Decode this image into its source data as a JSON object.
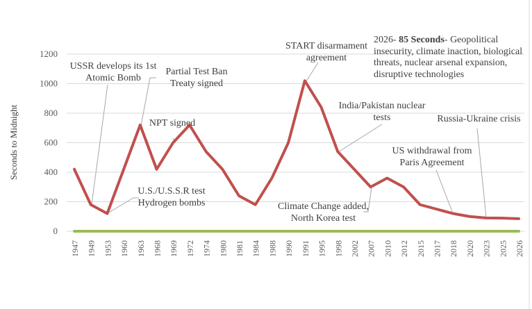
{
  "chart_data": {
    "type": "line",
    "ylabel": "Seconds to Midnight",
    "xlabel": "",
    "ylim": [
      0,
      1200
    ],
    "yticks": [
      0,
      200,
      400,
      600,
      800,
      1000,
      1200
    ],
    "grid": true,
    "categories": [
      "1947",
      "1949",
      "1953",
      "1960",
      "1963",
      "1968",
      "1969",
      "1972",
      "1974",
      "1980",
      "1981",
      "1984",
      "1988",
      "1990",
      "1991",
      "1995",
      "1998",
      "2002",
      "2007",
      "2010",
      "2012",
      "2015",
      "2017",
      "2018",
      "2020",
      "2023",
      "2025",
      "2026"
    ],
    "series": [
      {
        "color": "#c0504d",
        "values": [
          420,
          180,
          120,
          420,
          720,
          420,
          600,
          720,
          540,
          420,
          240,
          180,
          360,
          600,
          1020,
          840,
          540,
          420,
          300,
          360,
          300,
          180,
          150,
          120,
          100,
          90,
          89,
          85
        ]
      },
      {
        "color": "#9bbb59",
        "values": [
          0,
          0,
          0,
          0,
          0,
          0,
          0,
          0,
          0,
          0,
          0,
          0,
          0,
          0,
          0,
          0,
          0,
          0,
          0,
          0,
          0,
          0,
          0,
          0,
          0,
          0,
          0,
          0
        ]
      }
    ],
    "annotations": [
      {
        "lines": [
          "USSR develops its 1st",
          "Atomic Bomb"
        ]
      },
      {
        "lines": [
          "Partial Test Ban",
          "Treaty signed"
        ]
      },
      {
        "lines": [
          "NPT signed"
        ]
      },
      {
        "lines": [
          "U.S./U.S.S.R test",
          "Hydrogen bombs"
        ]
      },
      {
        "lines": [
          "START disarmament",
          "agreement"
        ]
      },
      {
        "lines": [
          "India/Pakistan nuclear",
          "tests"
        ]
      },
      {
        "lines": [
          "Climate Change added,",
          "North Korea test"
        ]
      },
      {
        "lines": [
          "US withdrawal from",
          "Paris Agreement"
        ]
      },
      {
        "lines": [
          "Russia-Ukraine crisis"
        ]
      }
    ],
    "note": {
      "year": "2026-",
      "bold": "85 Seconds",
      "rest": "- Geopolitical insecurity, climate inaction, biological threats, nuclear arsenal expansion, disruptive technologies"
    }
  }
}
